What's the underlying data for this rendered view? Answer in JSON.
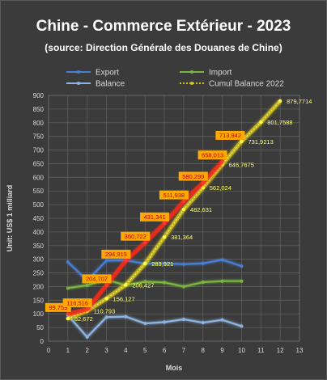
{
  "chart_data": {
    "type": "line",
    "title": "Chine  - Commerce Extérieur - 2023",
    "subtitle": "(source: Direction Générale des Douanes de Chine)",
    "xlabel": "Mois",
    "ylabel": "Unit: US$ 1 milliard",
    "xlim": [
      0,
      13
    ],
    "ylim": [
      0,
      900
    ],
    "xticks": [
      0,
      1,
      2,
      3,
      4,
      5,
      6,
      7,
      8,
      9,
      10,
      11,
      12,
      13
    ],
    "yticks": [
      0,
      50,
      100,
      150,
      200,
      250,
      300,
      350,
      400,
      450,
      500,
      550,
      600,
      650,
      700,
      750,
      800,
      850,
      900
    ],
    "grid": true,
    "legend_position": "top",
    "series": [
      {
        "name": "Export",
        "color": "#4a7fd6",
        "x": [
          1,
          2,
          3,
          4,
          5,
          6,
          7,
          8,
          9,
          10
        ],
        "y": [
          290,
          222,
          295,
          296,
          284,
          285,
          282,
          285,
          298,
          275
        ]
      },
      {
        "name": "Import",
        "color": "#7ab83d",
        "x": [
          1,
          2,
          3,
          4,
          5,
          6,
          7,
          8,
          9,
          10
        ],
        "y": [
          194,
          205,
          225,
          205,
          218,
          215,
          200,
          216,
          220,
          220
        ]
      },
      {
        "name": "Balance",
        "color": "#8db4e2",
        "x": [
          1,
          2,
          3,
          4,
          5,
          6,
          7,
          8,
          9,
          10
        ],
        "y": [
          95,
          15,
          88,
          90,
          65,
          70,
          80,
          68,
          78,
          55
        ]
      },
      {
        "name": "Cumul Balance 2022",
        "color": "#d4c619",
        "x": [
          1,
          2,
          3,
          4,
          5,
          6,
          7,
          8,
          9,
          10,
          11,
          12
        ],
        "y": [
          82.672,
          110.793,
          156.127,
          206.427,
          283.921,
          381.364,
          482.631,
          562.024,
          646.7675,
          731.9213,
          801.7588,
          879.7714
        ],
        "labels": [
          "82,672",
          "110,793",
          "156,127",
          "206,427",
          "283,921",
          "381,364",
          "482,631",
          "562,024",
          "646,7675",
          "731,9213",
          "801,7588",
          "879,7714"
        ]
      },
      {
        "name": "",
        "color": "#ff2a1a",
        "x": [
          1,
          2,
          3,
          4,
          5,
          6,
          7,
          8,
          9
        ],
        "y": [
          99.759,
          116.516,
          204.707,
          294.915,
          360.722,
          431.341,
          511.938,
          580.299,
          658.013
        ],
        "labels": [
          "99,759",
          "116,516",
          "204,707",
          "294,915",
          "360,722",
          "431,341",
          "511,938",
          "580,299",
          "658,013"
        ],
        "extra_label": "713,942"
      }
    ]
  }
}
